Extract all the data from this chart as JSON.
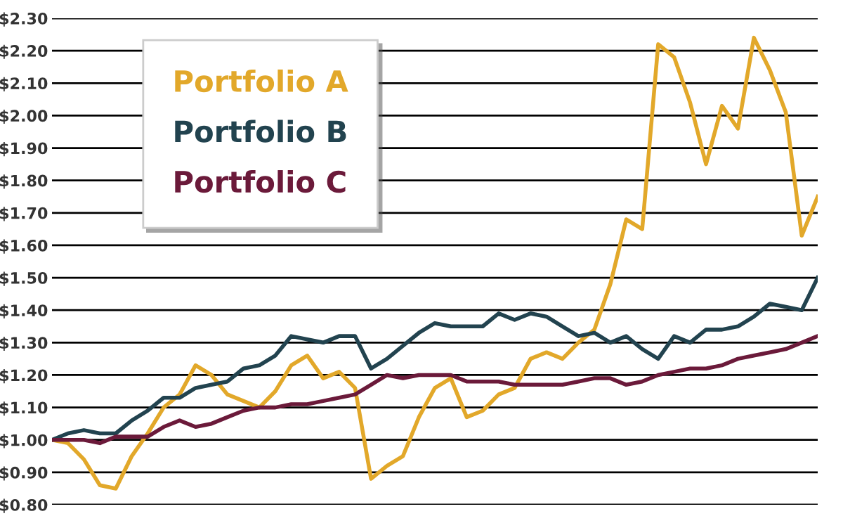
{
  "chart_data": {
    "type": "line",
    "categories": [
      null,
      null,
      null,
      null,
      null,
      null,
      null,
      null,
      null,
      null,
      null,
      null,
      null,
      null,
      null,
      null,
      null,
      null,
      null,
      null,
      null,
      null,
      null,
      null,
      null,
      null,
      null,
      null,
      null,
      null,
      null,
      null,
      null,
      null,
      null,
      null,
      null,
      null,
      null,
      null,
      null,
      null,
      null,
      null,
      null,
      null,
      null,
      null,
      null
    ],
    "series": [
      {
        "name": "Portfolio A",
        "color": "#e2a82a",
        "values": [
          1.0,
          0.99,
          0.94,
          0.86,
          0.85,
          0.95,
          1.02,
          1.1,
          1.14,
          1.23,
          1.2,
          1.14,
          1.12,
          1.1,
          1.15,
          1.23,
          1.26,
          1.19,
          1.21,
          1.16,
          0.88,
          0.92,
          0.95,
          1.07,
          1.16,
          1.19,
          1.07,
          1.09,
          1.14,
          1.16,
          1.25,
          1.27,
          1.25,
          1.3,
          1.34,
          1.48,
          1.68,
          1.65,
          2.22,
          2.18,
          2.04,
          1.85,
          2.03,
          1.96,
          2.24,
          2.14,
          2.01,
          1.63,
          1.75
        ]
      },
      {
        "name": "Portfolio B",
        "color": "#22434f",
        "values": [
          1.0,
          1.02,
          1.03,
          1.02,
          1.02,
          1.06,
          1.09,
          1.13,
          1.13,
          1.16,
          1.17,
          1.18,
          1.22,
          1.23,
          1.26,
          1.32,
          1.31,
          1.3,
          1.32,
          1.32,
          1.22,
          1.25,
          1.29,
          1.33,
          1.36,
          1.35,
          1.35,
          1.35,
          1.39,
          1.37,
          1.39,
          1.38,
          1.35,
          1.32,
          1.33,
          1.3,
          1.32,
          1.28,
          1.25,
          1.32,
          1.3,
          1.34,
          1.34,
          1.35,
          1.38,
          1.42,
          1.41,
          1.4,
          1.5
        ]
      },
      {
        "name": "Portfolio C",
        "color": "#6b1a3a",
        "values": [
          1.0,
          1.0,
          1.0,
          0.99,
          1.01,
          1.01,
          1.01,
          1.04,
          1.06,
          1.04,
          1.05,
          1.07,
          1.09,
          1.1,
          1.1,
          1.11,
          1.11,
          1.12,
          1.13,
          1.14,
          1.17,
          1.2,
          1.19,
          1.2,
          1.2,
          1.2,
          1.18,
          1.18,
          1.18,
          1.17,
          1.17,
          1.17,
          1.17,
          1.18,
          1.19,
          1.19,
          1.17,
          1.18,
          1.2,
          1.21,
          1.22,
          1.22,
          1.23,
          1.25,
          1.26,
          1.27,
          1.28,
          1.3,
          1.32
        ]
      }
    ],
    "ylim": [
      0.8,
      2.3
    ],
    "yticks": [
      {
        "value": 0.8,
        "label": "$0.80"
      },
      {
        "value": 0.9,
        "label": "$0.90"
      },
      {
        "value": 1.0,
        "label": "$1.00"
      },
      {
        "value": 1.1,
        "label": "$1.10"
      },
      {
        "value": 1.2,
        "label": "$1.20"
      },
      {
        "value": 1.3,
        "label": "$1.30"
      },
      {
        "value": 1.4,
        "label": "$1.40"
      },
      {
        "value": 1.5,
        "label": "$1.50"
      },
      {
        "value": 1.6,
        "label": "$1.60"
      },
      {
        "value": 1.7,
        "label": "$1.70"
      },
      {
        "value": 1.8,
        "label": "$1.80"
      },
      {
        "value": 1.9,
        "label": "$1.90"
      },
      {
        "value": 2.0,
        "label": "$2.00"
      },
      {
        "value": 2.1,
        "label": "$2.10"
      },
      {
        "value": 2.2,
        "label": "$2.20"
      },
      {
        "value": 2.3,
        "label": "$2.30"
      }
    ],
    "grid": "y",
    "legend": "top left",
    "tick_labels": "y",
    "line_style": "solid",
    "marker": "none"
  }
}
